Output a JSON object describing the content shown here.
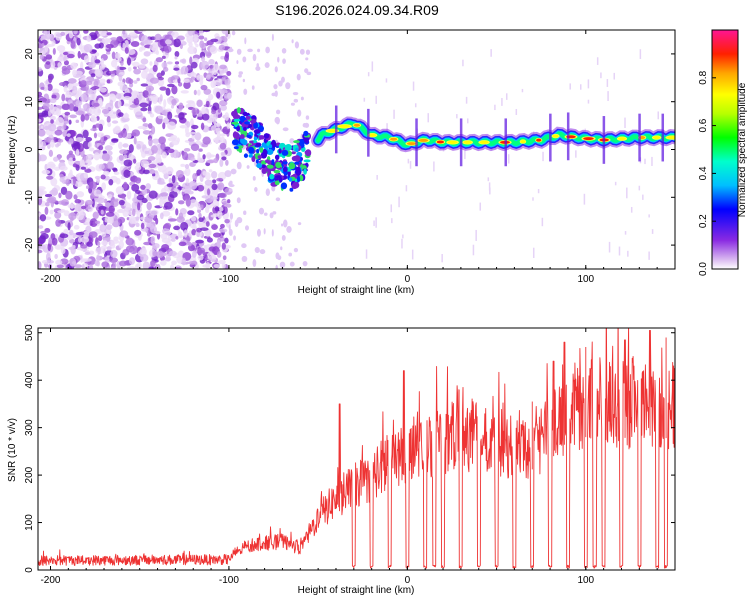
{
  "title": "S196.2026.024.09.34.R09",
  "chart_data": [
    {
      "type": "heatmap",
      "name": "spectrogram",
      "xlabel": "Height of straight line (km)",
      "ylabel": "Frequency (Hz)",
      "xlim": [
        -207,
        150
      ],
      "ylim": [
        -25,
        25
      ],
      "xticks": [
        -200,
        -100,
        0,
        100
      ],
      "yticks": [
        -20,
        -10,
        0,
        10,
        20
      ],
      "colorbar": {
        "label": "Normalized spectral amplitude",
        "range": [
          0,
          1
        ],
        "ticks": [
          0.0,
          0.2,
          0.4,
          0.6,
          0.8
        ]
      },
      "trace": [
        {
          "x": -97,
          "f": 4.5
        },
        {
          "x": -85,
          "f": 2.0
        },
        {
          "x": -75,
          "f": -3.0
        },
        {
          "x": -65,
          "f": -4.0
        },
        {
          "x": -55,
          "f": 0.0
        },
        {
          "x": -48,
          "f": 3.0
        },
        {
          "x": -38,
          "f": 4.5
        },
        {
          "x": -30,
          "f": 5.5
        },
        {
          "x": -20,
          "f": 3.0
        },
        {
          "x": -10,
          "f": 2.5
        },
        {
          "x": 0,
          "f": 1.0
        },
        {
          "x": 10,
          "f": 2.0
        },
        {
          "x": 20,
          "f": 1.5
        },
        {
          "x": 40,
          "f": 1.5
        },
        {
          "x": 60,
          "f": 1.5
        },
        {
          "x": 75,
          "f": 2.0
        },
        {
          "x": 85,
          "f": 3.0
        },
        {
          "x": 95,
          "f": 2.5
        },
        {
          "x": 110,
          "f": 2.0
        },
        {
          "x": 130,
          "f": 2.5
        },
        {
          "x": 150,
          "f": 2.5
        }
      ]
    },
    {
      "type": "line",
      "name": "snr",
      "xlabel": "Height of straight line (km)",
      "ylabel": "SNR (10 * v/v)",
      "xlim": [
        -207,
        150
      ],
      "ylim": [
        0,
        510
      ],
      "xticks": [
        -200,
        -100,
        0,
        100
      ],
      "yticks": [
        0,
        100,
        200,
        300,
        400,
        500
      ],
      "color": "#ee3333",
      "envelope": [
        {
          "x": -207,
          "snr": 20
        },
        {
          "x": -100,
          "snr": 22
        },
        {
          "x": -95,
          "snr": 40
        },
        {
          "x": -85,
          "snr": 55
        },
        {
          "x": -70,
          "snr": 60
        },
        {
          "x": -60,
          "snr": 45
        },
        {
          "x": -50,
          "snr": 110
        },
        {
          "x": -40,
          "snr": 150
        },
        {
          "x": -30,
          "snr": 175
        },
        {
          "x": -20,
          "snr": 200
        },
        {
          "x": -10,
          "snr": 230
        },
        {
          "x": 0,
          "snr": 255
        },
        {
          "x": 10,
          "snr": 270
        },
        {
          "x": 20,
          "snr": 265
        },
        {
          "x": 30,
          "snr": 290
        },
        {
          "x": 40,
          "snr": 280
        },
        {
          "x": 50,
          "snr": 270
        },
        {
          "x": 60,
          "snr": 260
        },
        {
          "x": 70,
          "snr": 265
        },
        {
          "x": 80,
          "snr": 290
        },
        {
          "x": 90,
          "snr": 340
        },
        {
          "x": 100,
          "snr": 350
        },
        {
          "x": 110,
          "snr": 355
        },
        {
          "x": 120,
          "snr": 345
        },
        {
          "x": 130,
          "snr": 360
        },
        {
          "x": 140,
          "snr": 350
        },
        {
          "x": 150,
          "snr": 345
        }
      ],
      "peaks": [
        {
          "x": -38,
          "snr": 350
        },
        {
          "x": -2,
          "snr": 420
        },
        {
          "x": 29,
          "snr": 380
        },
        {
          "x": 70,
          "snr": 355
        },
        {
          "x": 82,
          "snr": 440
        },
        {
          "x": 88,
          "snr": 480
        },
        {
          "x": 100,
          "snr": 470
        },
        {
          "x": 122,
          "snr": 485
        },
        {
          "x": 136,
          "snr": 505
        },
        {
          "x": 145,
          "snr": 490
        }
      ],
      "dropouts": [
        -30,
        -20,
        -10,
        0,
        10,
        15,
        20,
        30,
        40,
        50,
        60,
        70,
        80,
        90,
        100,
        105,
        110,
        120,
        130,
        140,
        145
      ]
    }
  ]
}
